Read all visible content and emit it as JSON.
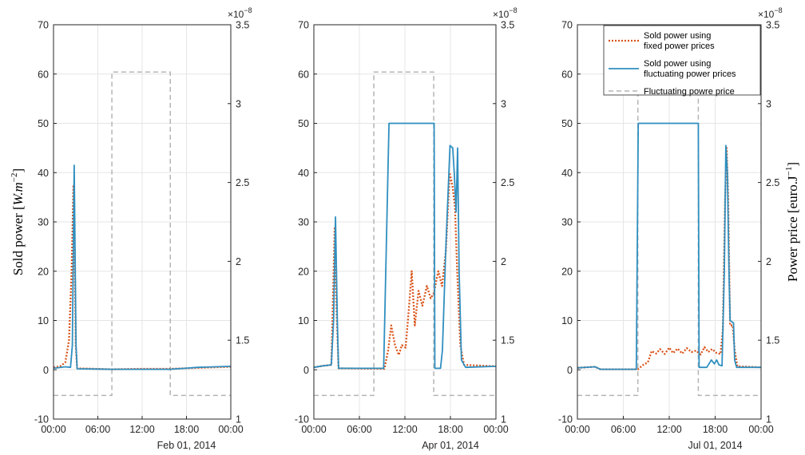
{
  "y_left_label": {
    "main": "Sold power [",
    "unit": "W.m",
    "exp": "−2",
    "close": "]"
  },
  "y_right_label": {
    "main": "Power price [euro.J",
    "exp": "−1",
    "close": "]"
  },
  "right_exponent": {
    "base": "×10",
    "exp": "−8"
  },
  "colors": {
    "fixed": "#D95319",
    "fluct": "#2F8FC0",
    "price": "#B4B4B4",
    "grid": "#E5E5E5",
    "axis": "#262626"
  },
  "chart_data": [
    {
      "type": "line",
      "date_label": "Feb 01, 2014",
      "x_ticks": [
        "00:00",
        "06:00",
        "12:00",
        "18:00",
        "00:00"
      ],
      "x_range_hours": [
        0,
        24
      ],
      "ylim_left": [
        -10,
        70
      ],
      "yticks_left": [
        -10,
        0,
        10,
        20,
        30,
        40,
        50,
        60,
        70
      ],
      "ylim_right": [
        1,
        3.5
      ],
      "yticks_right": [
        1,
        1.5,
        2,
        2.5,
        3,
        3.5
      ],
      "grid": true,
      "series": [
        {
          "name": "Sold power using fixed power prices",
          "axis": "left",
          "style": "dotted",
          "points": [
            [
              0,
              0.5
            ],
            [
              0.9,
              0.7
            ],
            [
              1.6,
              1.5
            ],
            [
              2.1,
              6
            ],
            [
              2.45,
              20
            ],
            [
              2.7,
              37.5
            ],
            [
              2.85,
              25
            ],
            [
              3.0,
              5
            ],
            [
              3.2,
              0.3
            ],
            [
              7.9,
              0.1
            ],
            [
              12,
              0.2
            ],
            [
              15.8,
              0.2
            ],
            [
              17.8,
              0.3
            ],
            [
              24,
              0.6
            ]
          ]
        },
        {
          "name": "Sold power using fluctuating power prices",
          "axis": "left",
          "style": "solid",
          "points": [
            [
              0,
              0.3
            ],
            [
              1.6,
              0.6
            ],
            [
              2.3,
              0.5
            ],
            [
              2.55,
              5
            ],
            [
              2.8,
              41.5
            ],
            [
              3.05,
              5
            ],
            [
              3.2,
              0.2
            ],
            [
              7.9,
              0.1
            ],
            [
              12,
              0.1
            ],
            [
              15.8,
              0.1
            ],
            [
              16.7,
              0.2
            ],
            [
              17.8,
              0.3
            ],
            [
              19.5,
              0.5
            ],
            [
              24,
              0.7
            ]
          ]
        },
        {
          "name": "Fluctuating powre price",
          "axis": "right",
          "style": "dashed",
          "points": [
            [
              0,
              1.15
            ],
            [
              7.9,
              1.15
            ],
            [
              7.9,
              3.2
            ],
            [
              15.8,
              3.2
            ],
            [
              15.8,
              1.15
            ],
            [
              24,
              1.15
            ]
          ]
        }
      ]
    },
    {
      "type": "line",
      "date_label": "Apr 01, 2014",
      "x_ticks": [
        "00:00",
        "06:00",
        "12:00",
        "18:00",
        "00:00"
      ],
      "x_range_hours": [
        0,
        24
      ],
      "ylim_left": [
        -10,
        70
      ],
      "yticks_left": [
        -10,
        0,
        10,
        20,
        30,
        40,
        50,
        60,
        70
      ],
      "ylim_right": [
        1,
        3.5
      ],
      "yticks_right": [
        1,
        1.5,
        2,
        2.5,
        3,
        3.5
      ],
      "grid": true,
      "series": [
        {
          "name": "Sold power using fixed power prices",
          "axis": "left",
          "style": "dotted",
          "points": [
            [
              0,
              0.5
            ],
            [
              1.2,
              0.8
            ],
            [
              2.3,
              1
            ],
            [
              2.75,
              29
            ],
            [
              3.0,
              12
            ],
            [
              3.25,
              0.3
            ],
            [
              9.3,
              0.2
            ],
            [
              9.8,
              4
            ],
            [
              10.2,
              9
            ],
            [
              10.7,
              5
            ],
            [
              11.2,
              3
            ],
            [
              11.6,
              5
            ],
            [
              12.1,
              4.5
            ],
            [
              12.5,
              12
            ],
            [
              12.9,
              20
            ],
            [
              13.3,
              9
            ],
            [
              13.8,
              16
            ],
            [
              14.3,
              13
            ],
            [
              14.9,
              17
            ],
            [
              15.4,
              14.5
            ],
            [
              15.8,
              15.5
            ],
            [
              16.4,
              20
            ],
            [
              16.9,
              17
            ],
            [
              17.4,
              24
            ],
            [
              17.9,
              40
            ],
            [
              18.3,
              37
            ],
            [
              18.6,
              33
            ],
            [
              18.9,
              20
            ],
            [
              19.3,
              5
            ],
            [
              19.8,
              1
            ],
            [
              24,
              0.7
            ]
          ]
        },
        {
          "name": "Sold power using fluctuating power prices",
          "axis": "left",
          "style": "solid",
          "points": [
            [
              0,
              0.5
            ],
            [
              1.2,
              0.8
            ],
            [
              2.3,
              1
            ],
            [
              2.6,
              10
            ],
            [
              2.85,
              31
            ],
            [
              3.1,
              10
            ],
            [
              3.25,
              0.3
            ],
            [
              9.2,
              0.3
            ],
            [
              9.9,
              50
            ],
            [
              15.85,
              50
            ],
            [
              15.95,
              0.3
            ],
            [
              16.7,
              0.3
            ],
            [
              16.95,
              4
            ],
            [
              17.4,
              25
            ],
            [
              17.95,
              45.5
            ],
            [
              18.3,
              45
            ],
            [
              18.5,
              40
            ],
            [
              18.75,
              32
            ],
            [
              18.95,
              45
            ],
            [
              19.15,
              20
            ],
            [
              19.45,
              2
            ],
            [
              20,
              0.5
            ],
            [
              24,
              0.7
            ]
          ]
        },
        {
          "name": "Fluctuating powre price",
          "axis": "right",
          "style": "dashed",
          "points": [
            [
              0,
              1.15
            ],
            [
              7.9,
              1.15
            ],
            [
              7.9,
              3.2
            ],
            [
              15.8,
              3.2
            ],
            [
              15.8,
              1.15
            ],
            [
              24,
              1.15
            ]
          ]
        }
      ]
    },
    {
      "type": "line",
      "date_label": "Jul 01, 2014",
      "x_ticks": [
        "00:00",
        "06:00",
        "12:00",
        "18:00",
        "00:00"
      ],
      "x_range_hours": [
        0,
        24
      ],
      "ylim_left": [
        -10,
        70
      ],
      "yticks_left": [
        -10,
        0,
        10,
        20,
        30,
        40,
        50,
        60,
        70
      ],
      "ylim_right": [
        1,
        3.5
      ],
      "yticks_right": [
        1,
        1.5,
        2,
        2.5,
        3,
        3.5
      ],
      "grid": true,
      "legend": {
        "placement": "top-right",
        "entries": [
          {
            "lines": [
              "Sold power using",
              "fixed power prices"
            ],
            "series": 0
          },
          {
            "lines": [
              "Sold power using",
              "fluctuating power prices"
            ],
            "series": 1
          },
          {
            "lines": [
              "Fluctuating powre price"
            ],
            "series": 2
          }
        ]
      },
      "series": [
        {
          "name": "Sold power using fixed power prices",
          "axis": "left",
          "style": "dotted",
          "points": [
            [
              0,
              0.4
            ],
            [
              2.3,
              0.6
            ],
            [
              3.0,
              0.1
            ],
            [
              7.9,
              0.1
            ],
            [
              8.6,
              1
            ],
            [
              9.2,
              1.5
            ],
            [
              9.7,
              3.8
            ],
            [
              10.3,
              3.3
            ],
            [
              10.8,
              4.2
            ],
            [
              11.4,
              3.2
            ],
            [
              12,
              4.5
            ],
            [
              12.5,
              3.4
            ],
            [
              13.1,
              4.3
            ],
            [
              13.7,
              3.3
            ],
            [
              14.3,
              4.4
            ],
            [
              14.9,
              3.6
            ],
            [
              15.5,
              3.9
            ],
            [
              16.1,
              3.1
            ],
            [
              16.6,
              4.6
            ],
            [
              17.1,
              3.6
            ],
            [
              17.6,
              4.2
            ],
            [
              18.2,
              3.4
            ],
            [
              18.7,
              3.2
            ],
            [
              19.0,
              8
            ],
            [
              19.3,
              35
            ],
            [
              19.5,
              45
            ],
            [
              19.7,
              35
            ],
            [
              19.95,
              9
            ],
            [
              20.3,
              9
            ],
            [
              20.55,
              4
            ],
            [
              20.9,
              0.7
            ],
            [
              24,
              0.5
            ]
          ]
        },
        {
          "name": "Sold power using fluctuating power prices",
          "axis": "left",
          "style": "solid",
          "points": [
            [
              0,
              0.4
            ],
            [
              2.3,
              0.6
            ],
            [
              3.0,
              0.1
            ],
            [
              7.7,
              0.1
            ],
            [
              7.95,
              50
            ],
            [
              15.8,
              50
            ],
            [
              15.9,
              0.5
            ],
            [
              16.9,
              0.5
            ],
            [
              17.2,
              1.2
            ],
            [
              17.5,
              2
            ],
            [
              17.9,
              1.2
            ],
            [
              18.2,
              2
            ],
            [
              18.5,
              1
            ],
            [
              18.9,
              0.8
            ],
            [
              19.2,
              20
            ],
            [
              19.4,
              45.5
            ],
            [
              19.6,
              40
            ],
            [
              19.8,
              20
            ],
            [
              19.95,
              10
            ],
            [
              20.4,
              9.5
            ],
            [
              20.55,
              2
            ],
            [
              20.8,
              0.5
            ],
            [
              24,
              0.5
            ]
          ]
        },
        {
          "name": "Fluctuating powre price",
          "axis": "right",
          "style": "dashed",
          "points": [
            [
              0,
              1.15
            ],
            [
              7.9,
              1.15
            ],
            [
              7.9,
              3.2
            ],
            [
              15.8,
              3.2
            ],
            [
              15.8,
              1.15
            ],
            [
              24,
              1.15
            ]
          ]
        }
      ]
    }
  ]
}
